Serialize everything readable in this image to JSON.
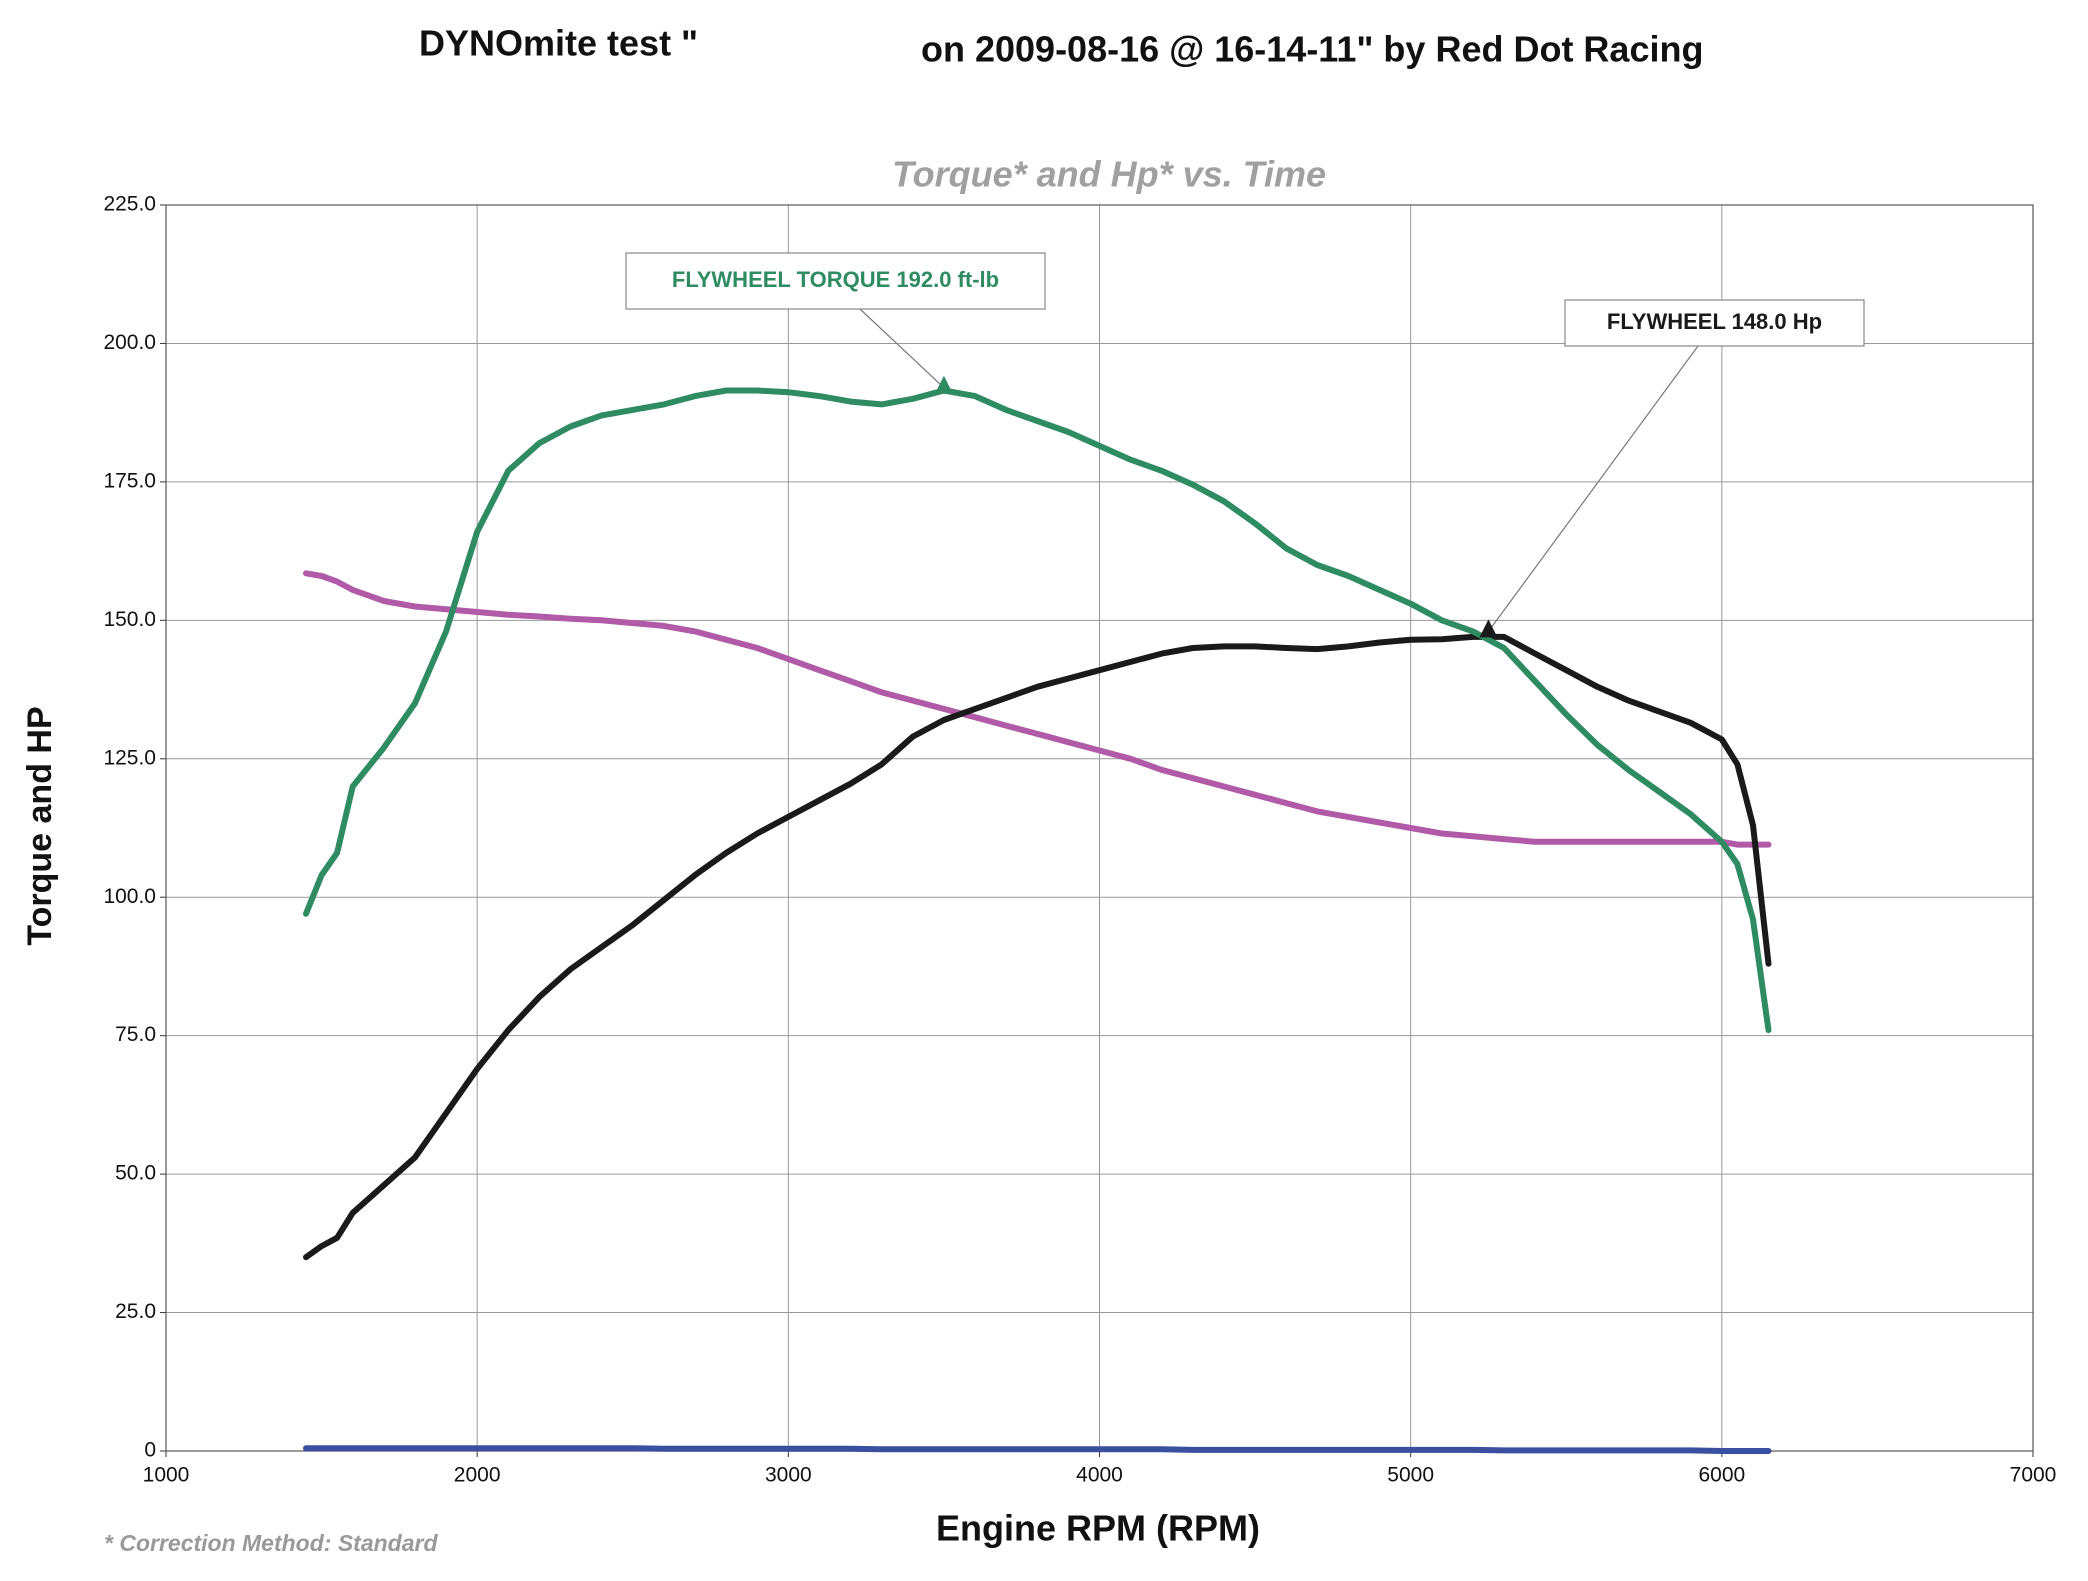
{
  "chart_data": {
    "type": "line",
    "title": "DYNOmite test \"",
    "title_right": "on 2009-08-16 @ 16-14-11\" by Red Dot Racing",
    "subtitle": "Torque* and Hp* vs. Time",
    "x_label": "Engine RPM (RPM)",
    "y_label": "Torque and HP",
    "footnote": "* Correction Method: Standard",
    "xlim": [
      1000,
      7000
    ],
    "xticks": [
      1000,
      2000,
      3000,
      4000,
      5000,
      6000,
      7000
    ],
    "ylim": [
      0,
      225
    ],
    "yticks": [
      0,
      {
        "value": 25,
        "label": "25.0"
      },
      {
        "value": 50,
        "label": "50.0"
      },
      {
        "value": 75,
        "label": "75.0"
      },
      {
        "value": 100,
        "label": "100.0"
      },
      {
        "value": 125,
        "label": "125.0"
      },
      {
        "value": 150,
        "label": "150.0"
      },
      {
        "value": 175,
        "label": "175.0"
      },
      {
        "value": 200,
        "label": "200.0"
      },
      {
        "value": 225,
        "label": "225.0"
      }
    ],
    "grid": true,
    "x": [
      1450,
      1500,
      1550,
      1600,
      1700,
      1800,
      1900,
      2000,
      2100,
      2200,
      2300,
      2400,
      2500,
      2600,
      2700,
      2800,
      2900,
      3000,
      3100,
      3200,
      3300,
      3400,
      3500,
      3600,
      3700,
      3800,
      3900,
      4000,
      4100,
      4200,
      4300,
      4400,
      4500,
      4600,
      4700,
      4800,
      4900,
      5000,
      5100,
      5200,
      5300,
      5400,
      5500,
      5600,
      5700,
      5800,
      5900,
      6000,
      6050,
      6100,
      6150
    ],
    "series": [
      {
        "color": "#b15aa8",
        "values": [
          158.5,
          158,
          157,
          155.5,
          153.5,
          152.5,
          152,
          151.5,
          151,
          150.7,
          150.3,
          150,
          149.5,
          149,
          148,
          146.5,
          145,
          143,
          141,
          139,
          137,
          135.5,
          134,
          132.5,
          131,
          129.5,
          128,
          126.5,
          125,
          123,
          121.5,
          120,
          118.5,
          117,
          115.5,
          114.5,
          113.5,
          112.5,
          111.5,
          111,
          110.5,
          110,
          110,
          110,
          110,
          110,
          110,
          110,
          109.5,
          109.5,
          109.5
        ]
      },
      {
        "color": "#1a1a1a",
        "values": [
          35,
          37,
          38.5,
          43,
          48,
          53,
          61,
          69,
          76,
          82,
          87,
          91,
          95,
          99.5,
          104,
          108,
          111.5,
          114.5,
          117.5,
          120.5,
          124,
          129,
          132,
          134,
          136,
          138,
          139.5,
          141,
          142.5,
          144,
          145,
          145.3,
          145.3,
          145,
          144.8,
          145.3,
          146,
          146.5,
          146.6,
          147,
          147,
          144,
          141,
          138,
          135.5,
          133.5,
          131.5,
          128.5,
          124,
          113,
          88
        ]
      },
      {
        "color": "#2e8b62",
        "values": [
          97,
          104,
          108,
          120,
          127,
          135,
          148,
          166,
          177,
          182,
          185,
          187,
          188,
          189,
          190.5,
          191.5,
          191.5,
          191.2,
          190.5,
          189.5,
          189,
          190,
          191.5,
          190.5,
          188,
          186,
          184,
          181.5,
          179,
          177,
          174.5,
          171.5,
          167.5,
          163,
          160,
          158,
          155.5,
          153,
          150,
          148,
          145,
          139,
          133,
          127.5,
          123,
          119,
          115,
          110,
          106,
          96,
          76
        ]
      },
      {
        "color": "#3a4fa0",
        "values": [
          0.5,
          0.5,
          0.5,
          0.5,
          0.5,
          0.5,
          0.5,
          0.5,
          0.5,
          0.5,
          0.5,
          0.5,
          0.5,
          0.4,
          0.4,
          0.4,
          0.4,
          0.4,
          0.4,
          0.4,
          0.3,
          0.3,
          0.3,
          0.3,
          0.3,
          0.3,
          0.3,
          0.3,
          0.3,
          0.3,
          0.2,
          0.2,
          0.2,
          0.2,
          0.2,
          0.2,
          0.2,
          0.2,
          0.2,
          0.2,
          0.1,
          0.1,
          0.1,
          0.1,
          0.1,
          0.1,
          0.1,
          0,
          0,
          0,
          0
        ]
      }
    ],
    "annotations": [
      {
        "text": "FLYWHEEL TORQUE 192.0 ft-lb",
        "x": 3500,
        "y": 192,
        "color": "#2e8b62"
      },
      {
        "text": "FLYWHEEL 148.0 Hp",
        "x": 5250,
        "y": 148,
        "color": "#1a1a1a"
      }
    ]
  }
}
